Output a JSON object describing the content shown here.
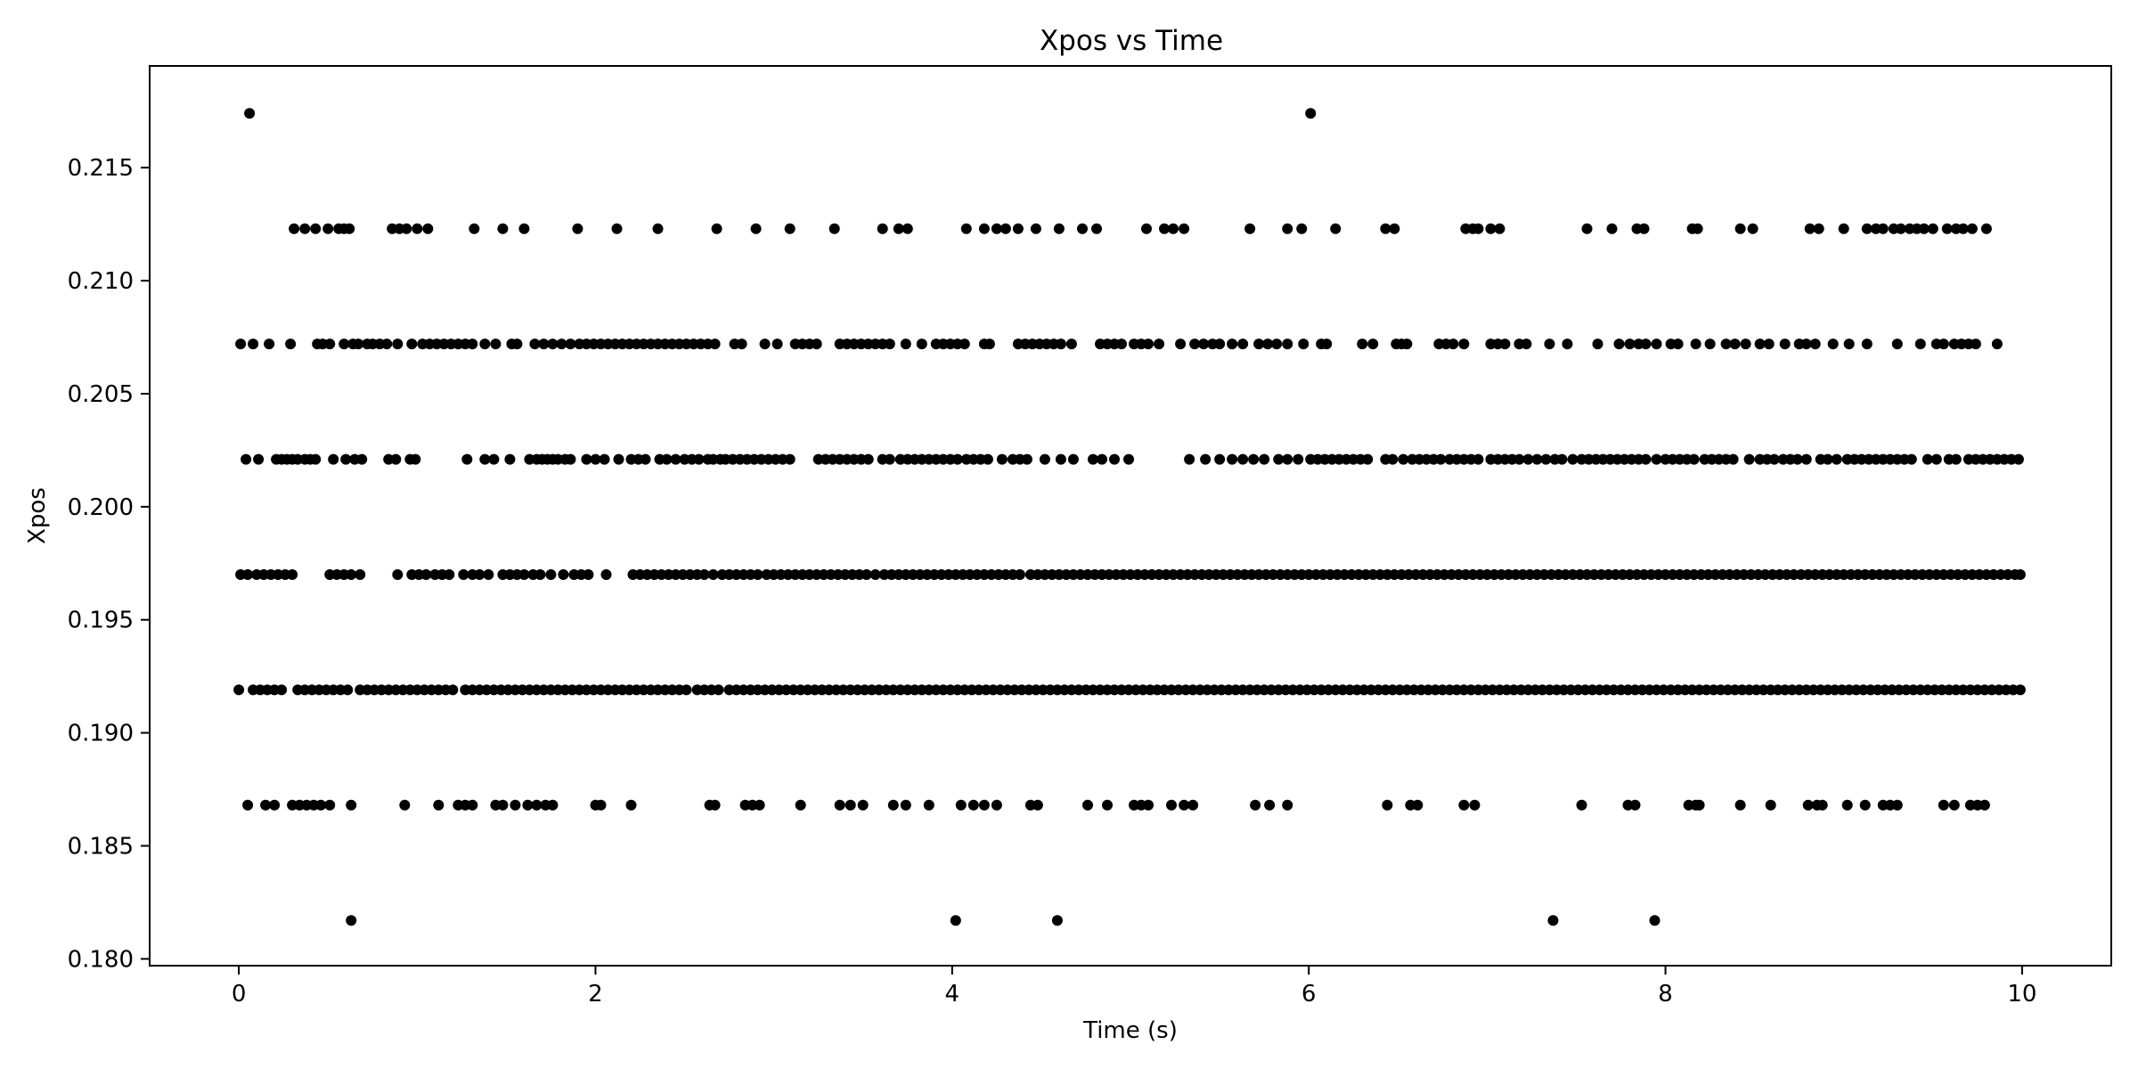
{
  "chart_data": {
    "type": "scatter",
    "title": "Xpos vs Time",
    "xlabel": "Time (s)",
    "ylabel": "Xpos",
    "xlim": [
      -0.5,
      10.5
    ],
    "ylim": [
      0.1797,
      0.2195
    ],
    "grid": false,
    "x_ticks": [
      0,
      2,
      4,
      6,
      8,
      10
    ],
    "x_tick_labels": [
      "0",
      "2",
      "4",
      "6",
      "8",
      "10"
    ],
    "y_ticks": [
      0.18,
      0.185,
      0.19,
      0.195,
      0.2,
      0.205,
      0.21,
      0.215
    ],
    "y_tick_labels": [
      "0.180",
      "0.185",
      "0.190",
      "0.195",
      "0.200",
      "0.205",
      "0.210",
      "0.215"
    ],
    "marker_color": "#000000",
    "series": [
      {
        "level": 0.2174,
        "x": [
          0.06,
          6.01
        ]
      },
      {
        "level": 0.2123,
        "x": [
          0.31,
          0.37,
          0.43,
          0.5,
          0.56,
          0.59,
          0.62,
          0.86,
          0.9,
          0.94,
          1.0,
          1.06,
          1.32,
          1.48,
          1.6,
          1.9,
          2.12,
          2.35,
          2.68,
          2.9,
          3.09,
          3.34,
          3.61,
          3.7,
          3.75,
          4.08,
          4.18,
          4.25,
          4.3,
          4.37,
          4.47,
          4.6,
          4.73,
          4.81,
          5.09,
          5.19,
          5.24,
          5.3,
          5.67,
          5.88,
          5.96,
          6.15,
          6.43,
          6.48,
          6.88,
          6.92,
          6.95,
          7.02,
          7.07,
          7.56,
          7.7,
          7.84,
          7.88,
          8.15,
          8.18,
          8.42,
          8.49,
          8.81,
          8.86,
          9.0,
          9.13,
          9.18,
          9.22,
          9.28,
          9.32,
          9.37,
          9.41,
          9.45,
          9.5,
          9.58,
          9.63,
          9.67,
          9.72,
          9.8
        ]
      },
      {
        "level": 0.2072,
        "x": [
          0.01,
          0.08,
          0.17,
          0.29,
          0.44,
          0.47,
          0.51,
          0.59,
          0.64,
          0.67,
          0.72,
          0.75,
          0.79,
          0.83,
          0.89,
          0.97,
          1.03,
          1.07,
          1.11,
          1.15,
          1.19,
          1.23,
          1.27,
          1.31,
          1.38,
          1.44,
          1.53,
          1.56,
          1.66,
          1.71,
          1.76,
          1.81,
          1.86,
          1.91,
          1.95,
          1.99,
          2.03,
          2.07,
          2.11,
          2.15,
          2.19,
          2.23,
          2.27,
          2.31,
          2.35,
          2.39,
          2.43,
          2.47,
          2.51,
          2.55,
          2.59,
          2.63,
          2.67,
          2.78,
          2.82,
          2.95,
          3.02,
          3.12,
          3.16,
          3.2,
          3.24,
          3.37,
          3.41,
          3.45,
          3.49,
          3.53,
          3.57,
          3.61,
          3.65,
          3.74,
          3.83,
          3.91,
          3.95,
          3.99,
          4.03,
          4.07,
          4.18,
          4.21,
          4.37,
          4.41,
          4.45,
          4.49,
          4.53,
          4.57,
          4.61,
          4.67,
          4.83,
          4.87,
          4.91,
          4.95,
          5.02,
          5.06,
          5.1,
          5.16,
          5.28,
          5.36,
          5.41,
          5.46,
          5.5,
          5.57,
          5.63,
          5.72,
          5.77,
          5.82,
          5.88,
          5.97,
          6.07,
          6.1,
          6.3,
          6.36,
          6.49,
          6.52,
          6.55,
          6.73,
          6.77,
          6.81,
          6.87,
          7.02,
          7.06,
          7.1,
          7.18,
          7.22,
          7.35,
          7.45,
          7.62,
          7.74,
          7.8,
          7.85,
          7.89,
          7.95,
          8.03,
          8.07,
          8.17,
          8.25,
          8.34,
          8.39,
          8.45,
          8.53,
          8.58,
          8.67,
          8.75,
          8.79,
          8.84,
          8.94,
          9.03,
          9.13,
          9.3,
          9.43,
          9.52,
          9.56,
          9.62,
          9.66,
          9.7,
          9.74,
          9.86
        ]
      },
      {
        "level": 0.2021,
        "x": [
          0.04,
          0.11,
          0.21,
          0.24,
          0.27,
          0.3,
          0.33,
          0.37,
          0.4,
          0.43,
          0.53,
          0.6,
          0.65,
          0.69,
          0.84,
          0.88,
          0.96,
          0.99,
          1.28,
          1.38,
          1.43,
          1.52,
          1.63,
          1.67,
          1.7,
          1.73,
          1.76,
          1.79,
          1.83,
          1.86,
          1.95,
          2.0,
          2.05,
          2.13,
          2.2,
          2.24,
          2.28,
          2.36,
          2.4,
          2.45,
          2.5,
          2.54,
          2.58,
          2.63,
          2.66,
          2.7,
          2.73,
          2.77,
          2.81,
          2.85,
          2.89,
          2.93,
          2.97,
          3.01,
          3.05,
          3.09,
          3.25,
          3.29,
          3.33,
          3.37,
          3.41,
          3.45,
          3.49,
          3.53,
          3.61,
          3.65,
          3.71,
          3.75,
          3.79,
          3.83,
          3.87,
          3.91,
          3.95,
          3.99,
          4.03,
          4.08,
          4.12,
          4.16,
          4.2,
          4.28,
          4.34,
          4.38,
          4.42,
          4.52,
          4.61,
          4.68,
          4.79,
          4.84,
          4.91,
          4.99,
          5.33,
          5.42,
          5.5,
          5.57,
          5.63,
          5.69,
          5.75,
          5.83,
          5.88,
          5.94,
          6.01,
          6.05,
          6.09,
          6.13,
          6.17,
          6.21,
          6.25,
          6.29,
          6.33,
          6.43,
          6.47,
          6.53,
          6.58,
          6.62,
          6.66,
          6.7,
          6.74,
          6.79,
          6.83,
          6.87,
          6.91,
          6.95,
          7.02,
          7.06,
          7.1,
          7.14,
          7.18,
          7.23,
          7.28,
          7.33,
          7.38,
          7.42,
          7.48,
          7.53,
          7.57,
          7.61,
          7.65,
          7.69,
          7.73,
          7.77,
          7.81,
          7.85,
          7.89,
          7.95,
          8.0,
          8.04,
          8.08,
          8.12,
          8.16,
          8.22,
          8.26,
          8.3,
          8.34,
          8.38,
          8.47,
          8.53,
          8.57,
          8.61,
          8.66,
          8.7,
          8.74,
          8.79,
          8.87,
          8.91,
          8.96,
          9.02,
          9.06,
          9.1,
          9.14,
          9.18,
          9.22,
          9.26,
          9.3,
          9.34,
          9.38,
          9.47,
          9.52,
          9.59,
          9.63,
          9.7,
          9.74,
          9.78,
          9.82,
          9.86,
          9.9,
          9.94,
          9.98
        ]
      },
      {
        "level": 0.197,
        "x": [
          0.01,
          0.05,
          0.1,
          0.14,
          0.18,
          0.22,
          0.26,
          0.3,
          0.51,
          0.55,
          0.59,
          0.63,
          0.68,
          0.89,
          0.97,
          1.01,
          1.05,
          1.1,
          1.14,
          1.18,
          1.26,
          1.31,
          1.35,
          1.4,
          1.48,
          1.52,
          1.56,
          1.6,
          1.65,
          1.69,
          1.75,
          1.82,
          1.88,
          1.92,
          1.96,
          2.06,
          2.21,
          2.25,
          2.29,
          2.33,
          2.37,
          2.41,
          2.45,
          2.49,
          2.53,
          2.57,
          2.61,
          2.66,
          2.71,
          2.75,
          2.79,
          2.83,
          2.87,
          2.91,
          2.96,
          3.0,
          3.04,
          3.08,
          3.12,
          3.16,
          3.2,
          3.24,
          3.28,
          3.32,
          3.36,
          3.4,
          3.44,
          3.48,
          3.52,
          3.57,
          3.62,
          3.66,
          3.7,
          3.74,
          3.78,
          3.82,
          3.86,
          3.9,
          3.94,
          3.98,
          4.02,
          4.06,
          4.1,
          4.14,
          4.18,
          4.22,
          4.26,
          4.3,
          4.34,
          4.38,
          4.44,
          4.48,
          4.52,
          4.56,
          4.6,
          4.64,
          4.68,
          4.72,
          4.76,
          4.8,
          4.84,
          4.88,
          4.92,
          4.96,
          5.0,
          5.04,
          5.08,
          5.12,
          5.16,
          5.2,
          5.24,
          5.28,
          5.32,
          5.36,
          5.4,
          5.44,
          5.48,
          5.52,
          5.56,
          5.6,
          5.64,
          5.68,
          5.72,
          5.76,
          5.8,
          5.84,
          5.88,
          5.92,
          5.96,
          6.0,
          6.04,
          6.08,
          6.12,
          6.16,
          6.2,
          6.24,
          6.28,
          6.32,
          6.36,
          6.4,
          6.44,
          6.48,
          6.52,
          6.56,
          6.6,
          6.64,
          6.68,
          6.72,
          6.76,
          6.8,
          6.84,
          6.88,
          6.92,
          6.96,
          7.0,
          7.04,
          7.08,
          7.12,
          7.16,
          7.2,
          7.24,
          7.28,
          7.32,
          7.36,
          7.4,
          7.44,
          7.48,
          7.52,
          7.56,
          7.6,
          7.64,
          7.68,
          7.72,
          7.76,
          7.8,
          7.84,
          7.88,
          7.92,
          7.96,
          8.0,
          8.04,
          8.08,
          8.12,
          8.16,
          8.2,
          8.24,
          8.28,
          8.32,
          8.36,
          8.4,
          8.44,
          8.48,
          8.52,
          8.56,
          8.6,
          8.64,
          8.68,
          8.72,
          8.76,
          8.8,
          8.84,
          8.88,
          8.92,
          8.96,
          9.0,
          9.04,
          9.08,
          9.12,
          9.16,
          9.2,
          9.24,
          9.28,
          9.32,
          9.36,
          9.4,
          9.44,
          9.48,
          9.52,
          9.56,
          9.6,
          9.64,
          9.68,
          9.72,
          9.76,
          9.8,
          9.84,
          9.88,
          9.92,
          9.96,
          9.99
        ]
      },
      {
        "level": 0.1919,
        "x": [
          0.0,
          0.08,
          0.12,
          0.16,
          0.2,
          0.24,
          0.33,
          0.37,
          0.41,
          0.45,
          0.49,
          0.53,
          0.57,
          0.61,
          0.68,
          0.72,
          0.76,
          0.8,
          0.84,
          0.88,
          0.92,
          0.96,
          1.0,
          1.04,
          1.08,
          1.12,
          1.16,
          1.2,
          1.27,
          1.31,
          1.35,
          1.39,
          1.43,
          1.47,
          1.51,
          1.55,
          1.59,
          1.63,
          1.67,
          1.71,
          1.75,
          1.79,
          1.83,
          1.87,
          1.91,
          1.95,
          1.99,
          2.03,
          2.07,
          2.11,
          2.15,
          2.19,
          2.23,
          2.27,
          2.31,
          2.35,
          2.39,
          2.43,
          2.47,
          2.51,
          2.57,
          2.61,
          2.65,
          2.69,
          2.75,
          2.79,
          2.83,
          2.87,
          2.91,
          2.95,
          2.99,
          3.03,
          3.07,
          3.11,
          3.15,
          3.19,
          3.23,
          3.27,
          3.31,
          3.35,
          3.39,
          3.43,
          3.47,
          3.51,
          3.55,
          3.59,
          3.63,
          3.67,
          3.71,
          3.75,
          3.79,
          3.83,
          3.87,
          3.91,
          3.95,
          3.99,
          4.03,
          4.07,
          4.11,
          4.15,
          4.19,
          4.23,
          4.27,
          4.31,
          4.35,
          4.39,
          4.43,
          4.47,
          4.51,
          4.55,
          4.59,
          4.63,
          4.67,
          4.71,
          4.75,
          4.79,
          4.83,
          4.87,
          4.91,
          4.95,
          4.99,
          5.03,
          5.07,
          5.11,
          5.15,
          5.19,
          5.23,
          5.27,
          5.31,
          5.35,
          5.39,
          5.43,
          5.47,
          5.51,
          5.55,
          5.59,
          5.63,
          5.67,
          5.71,
          5.75,
          5.79,
          5.83,
          5.87,
          5.91,
          5.95,
          5.99,
          6.03,
          6.07,
          6.11,
          6.15,
          6.19,
          6.23,
          6.27,
          6.31,
          6.35,
          6.39,
          6.43,
          6.47,
          6.51,
          6.55,
          6.59,
          6.63,
          6.67,
          6.71,
          6.75,
          6.79,
          6.83,
          6.87,
          6.91,
          6.95,
          6.99,
          7.03,
          7.07,
          7.11,
          7.15,
          7.19,
          7.23,
          7.27,
          7.31,
          7.35,
          7.39,
          7.43,
          7.47,
          7.51,
          7.55,
          7.59,
          7.63,
          7.67,
          7.71,
          7.75,
          7.79,
          7.83,
          7.87,
          7.91,
          7.95,
          7.99,
          8.03,
          8.07,
          8.11,
          8.15,
          8.19,
          8.23,
          8.27,
          8.31,
          8.35,
          8.39,
          8.43,
          8.47,
          8.51,
          8.55,
          8.59,
          8.63,
          8.67,
          8.71,
          8.75,
          8.79,
          8.83,
          8.87,
          8.91,
          8.95,
          8.99,
          9.03,
          9.07,
          9.11,
          9.15,
          9.19,
          9.23,
          9.27,
          9.31,
          9.35,
          9.39,
          9.43,
          9.47,
          9.51,
          9.55,
          9.59,
          9.63,
          9.67,
          9.71,
          9.75,
          9.79,
          9.83,
          9.87,
          9.91,
          9.95,
          9.99
        ]
      },
      {
        "level": 0.1868,
        "x": [
          0.05,
          0.15,
          0.2,
          0.3,
          0.34,
          0.38,
          0.42,
          0.46,
          0.51,
          0.63,
          0.93,
          1.12,
          1.23,
          1.27,
          1.31,
          1.44,
          1.48,
          1.55,
          1.62,
          1.67,
          1.72,
          1.76,
          2.0,
          2.03,
          2.2,
          2.64,
          2.67,
          2.84,
          2.88,
          2.92,
          3.15,
          3.37,
          3.43,
          3.5,
          3.67,
          3.74,
          3.87,
          4.05,
          4.12,
          4.18,
          4.25,
          4.44,
          4.48,
          4.76,
          4.87,
          5.02,
          5.06,
          5.1,
          5.23,
          5.3,
          5.35,
          5.7,
          5.78,
          5.88,
          6.44,
          6.57,
          6.61,
          6.87,
          6.93,
          7.53,
          7.79,
          7.83,
          8.13,
          8.17,
          8.19,
          8.42,
          8.59,
          8.8,
          8.85,
          8.88,
          9.02,
          9.12,
          9.22,
          9.26,
          9.3,
          9.56,
          9.62,
          9.71,
          9.75,
          9.79
        ]
      },
      {
        "level": 0.1817,
        "x": [
          0.63,
          4.02,
          4.59,
          7.37,
          7.94
        ]
      }
    ]
  }
}
